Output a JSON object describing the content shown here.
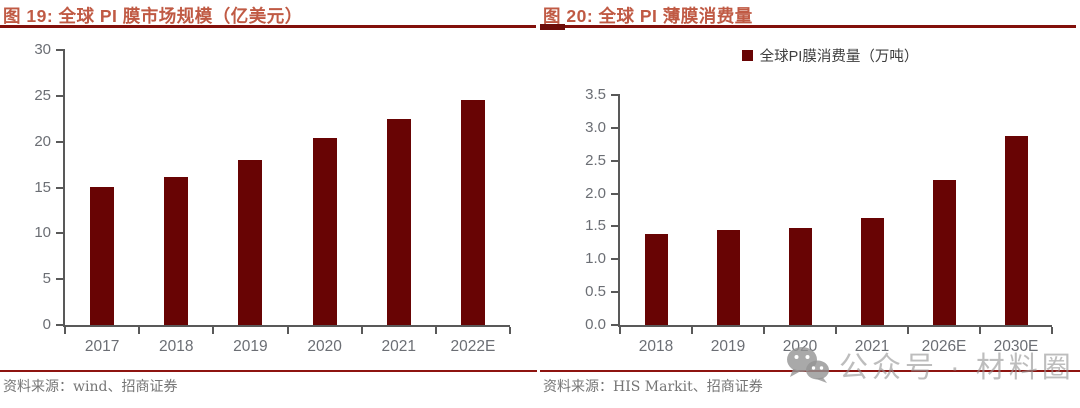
{
  "watermark": {
    "icon": "wechat-icon",
    "text": "公众号 · 材料圈"
  },
  "colors": {
    "bar": "#680404",
    "title": "#C05A44",
    "title_rule": "#82100B",
    "axis": "#595959",
    "tick_label": "#6b6e74",
    "source_rule": "#8E1410",
    "source_text": "#757575",
    "watermark": "#949494"
  },
  "chart_data": [
    {
      "type": "bar",
      "title": "图 19: 全球 PI 膜市场规模（亿美元）",
      "categories": [
        "2017",
        "2018",
        "2019",
        "2020",
        "2021",
        "2022E"
      ],
      "values": [
        15.1,
        16.2,
        18.0,
        20.4,
        22.5,
        24.5
      ],
      "ylim": [
        0,
        30
      ],
      "ytick_labels": [
        "30",
        "25",
        "20",
        "15",
        "10",
        "5",
        "0"
      ],
      "legend": null,
      "grid": false,
      "source": "资料来源：wind、招商证券"
    },
    {
      "type": "bar",
      "title": "图 20: 全球 PI 薄膜消费量",
      "categories": [
        "2018",
        "2019",
        "2020",
        "2021",
        "2026E",
        "2030E"
      ],
      "values": [
        1.39,
        1.45,
        1.48,
        1.63,
        2.21,
        2.87
      ],
      "ylim": [
        0,
        3.5
      ],
      "ytick_labels": [
        "3.5",
        "3.0",
        "2.5",
        "2.0",
        "1.5",
        "1.0",
        "0.5",
        "0.0"
      ],
      "legend": "全球PI膜消费量（万吨）",
      "legend_position": "top",
      "grid": false,
      "source": "资料来源：HIS Markit、招商证券"
    }
  ]
}
